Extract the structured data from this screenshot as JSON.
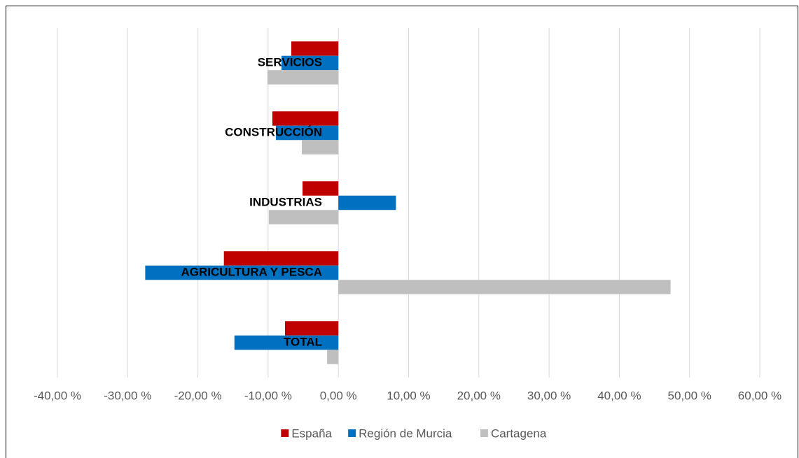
{
  "chart_data": {
    "type": "hbar",
    "categories": [
      "SERVICIOS",
      "CONSTRUCCIÓN",
      "INDUSTRIAS",
      "AGRICULTURA Y PESCA",
      "TOTAL"
    ],
    "series": [
      {
        "name": "España",
        "color": "#c00000",
        "values": [
          -6.7,
          -9.4,
          -5.1,
          -16.3,
          -7.6
        ]
      },
      {
        "name": "Región de Murcia",
        "color": "#0070c0",
        "values": [
          -8.1,
          -8.9,
          8.2,
          -27.5,
          -14.8
        ]
      },
      {
        "name": "Cartagena",
        "color": "#bfbfbf",
        "values": [
          -10.1,
          -5.2,
          -9.9,
          47.3,
          -1.6
        ]
      }
    ],
    "xlim": [
      -40,
      60
    ],
    "xticks": [
      {
        "value": -40,
        "label": "-40,00 %"
      },
      {
        "value": -30,
        "label": "-30,00 %"
      },
      {
        "value": -20,
        "label": "-20,00 %"
      },
      {
        "value": -10,
        "label": "-10,00 %"
      },
      {
        "value": 0,
        "label": "0,00 %"
      },
      {
        "value": 10,
        "label": "10,00 %"
      },
      {
        "value": 20,
        "label": "20,00 %"
      },
      {
        "value": 30,
        "label": "30,00 %"
      },
      {
        "value": 40,
        "label": "40,00 %"
      },
      {
        "value": 50,
        "label": "50,00 %"
      },
      {
        "value": 60,
        "label": "60,00 %"
      }
    ],
    "grid": true,
    "legend": "bottom"
  }
}
